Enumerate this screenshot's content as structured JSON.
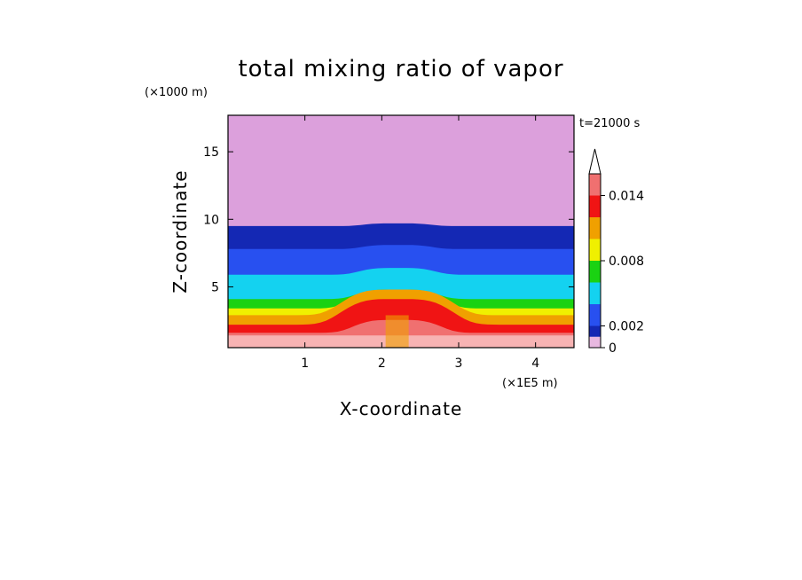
{
  "chart_data": {
    "type": "heatmap",
    "title": "total mixing ratio of vapor",
    "xlabel": "X-coordinate",
    "ylabel": "Z-coordinate",
    "x_unit": "(×1E5 m)",
    "y_unit": "(×1000 m)",
    "time_label": "t=21000 s",
    "xlim": [
      0,
      4.5
    ],
    "ylim": [
      0.5,
      17.7
    ],
    "x_ticks": [
      "1",
      "2",
      "3",
      "4"
    ],
    "x_tick_values": [
      1,
      2,
      3,
      4
    ],
    "y_ticks": [
      "5",
      "10",
      "15"
    ],
    "y_tick_values": [
      5,
      10,
      15
    ],
    "colorbar": {
      "tick_labels": [
        "0",
        "0.002",
        "0.008",
        "0.014"
      ],
      "tick_values": [
        0,
        0.002,
        0.008,
        0.014
      ],
      "levels": [
        0,
        0.001,
        0.002,
        0.004,
        0.006,
        0.008,
        0.01,
        0.012,
        0.014,
        0.016
      ],
      "colors": [
        "#e8b8e0",
        "#1428b4",
        "#2850f0",
        "#14d2f0",
        "#1ad212",
        "#f0f000",
        "#f0a000",
        "#f01414",
        "#f07070",
        "#f7b3b3"
      ],
      "extend": "max"
    },
    "bands": [
      {
        "level": "0.016+",
        "color": "#f7b3b3",
        "z_top": 1.4
      },
      {
        "level": "0.014",
        "color": "#f07070",
        "z_top": 1.6
      },
      {
        "level": "0.012",
        "color": "#f01414",
        "z_top": 2.2
      },
      {
        "level": "0.010",
        "color": "#f0a000",
        "z_top": 2.9
      },
      {
        "level": "0.008",
        "color": "#f0f000",
        "z_top": 3.4
      },
      {
        "level": "0.006",
        "color": "#1ad212",
        "z_top": 4.1
      },
      {
        "level": "0.004",
        "color": "#14d2f0",
        "z_top": 5.9
      },
      {
        "level": "0.002",
        "color": "#2850f0",
        "z_top": 7.8
      },
      {
        "level": "0.001",
        "color": "#1428b4",
        "z_top": 9.5
      },
      {
        "level": "0",
        "color": "#dca0dc",
        "z_top": 17.7
      }
    ]
  },
  "colors": {
    "background": "#ffffff",
    "upper": "#dca0dc"
  }
}
